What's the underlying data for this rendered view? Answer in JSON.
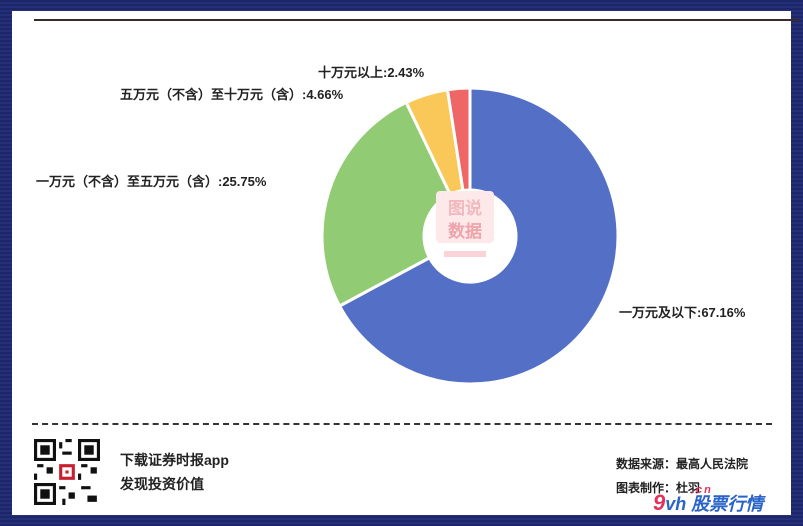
{
  "chart_data": {
    "type": "pie",
    "donut": true,
    "title": "",
    "slices": [
      {
        "label": "一万元及以下",
        "value": 67.16,
        "display": "一万元及以下:67.16%",
        "color": "#5470c6"
      },
      {
        "label": "一万元（不含）至五万元（含）",
        "value": 25.75,
        "display": "一万元（不含）至五万元（含）:25.75%",
        "color": "#91cc75"
      },
      {
        "label": "五万元（不含）至十万元（含）",
        "value": 4.66,
        "display": "五万元（不含）至十万元（含）:4.66%",
        "color": "#fac858"
      },
      {
        "label": "十万元以上",
        "value": 2.43,
        "display": "十万元以上:2.43%",
        "color": "#ee6666"
      }
    ],
    "watermark": [
      "图说",
      "数据"
    ]
  },
  "footer": {
    "promo_line1": "下载证券时报app",
    "promo_line2": "发现投资价值",
    "source": "数据来源：最高人民法院",
    "author": "图表制作：杜羽",
    "brand_nine": "9",
    "brand_vh": "vh",
    "brand_cn": ".cn",
    "brand_name": "股票行情"
  }
}
